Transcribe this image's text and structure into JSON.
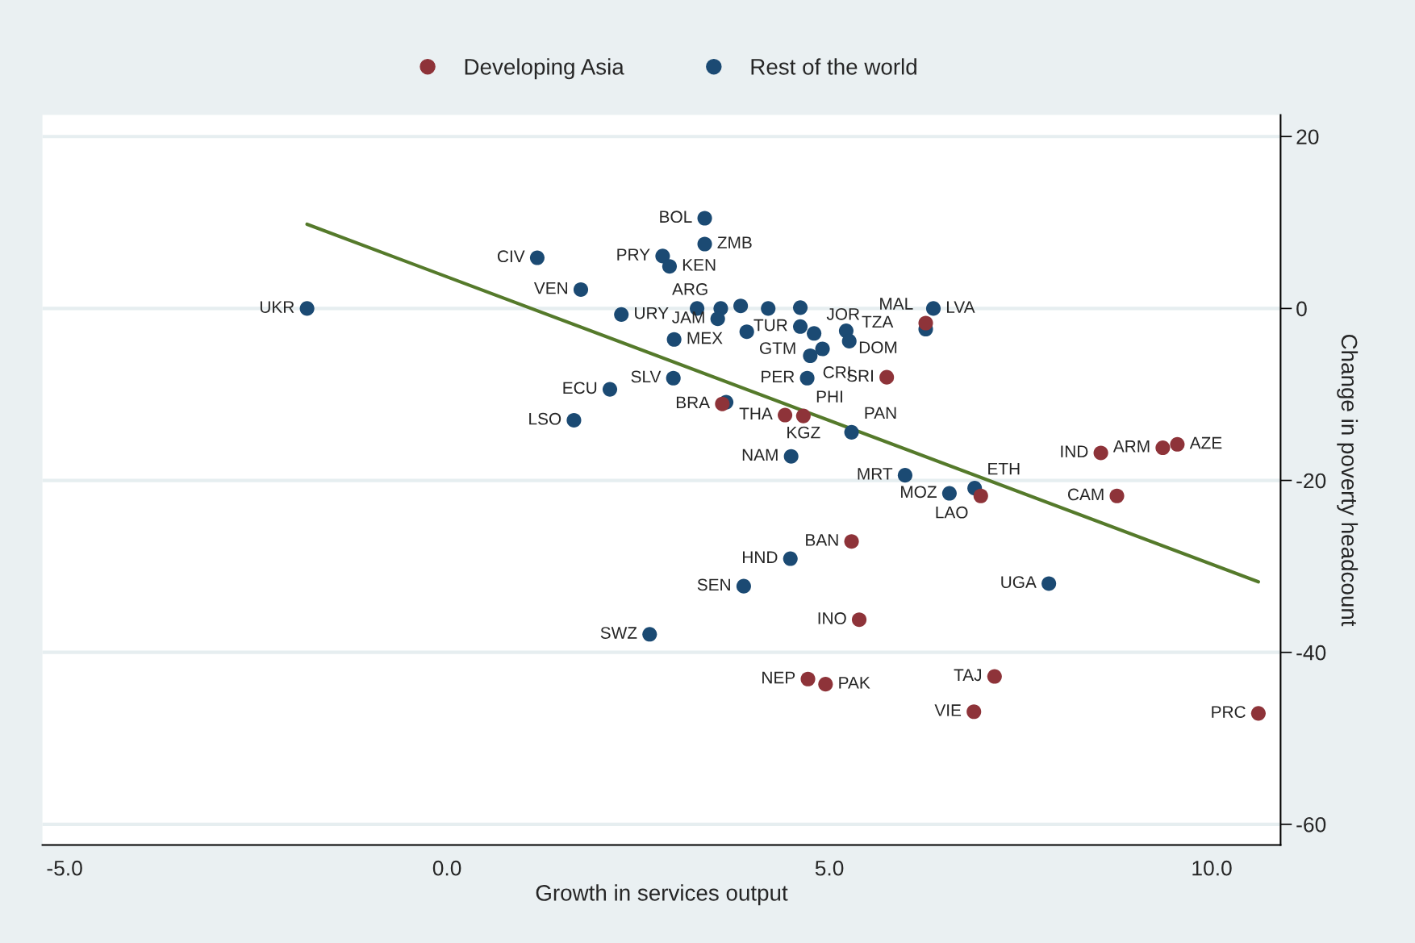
{
  "chart_data": {
    "type": "scatter",
    "xlabel": "Growth in services output",
    "ylabel": "Change in poverty headcount",
    "xlim": [
      -5.29,
      10.9
    ],
    "ylim": [
      -62.4,
      22.5
    ],
    "xticks": [
      {
        "value": -5,
        "label": "-5.0"
      },
      {
        "value": 0,
        "label": "0.0"
      },
      {
        "value": 5,
        "label": "5.0"
      },
      {
        "value": 10,
        "label": "10.0"
      }
    ],
    "yticks": [
      20,
      0,
      -20,
      -40,
      -60
    ],
    "grid": "y",
    "legend": "top",
    "marker": "circle",
    "series": [
      {
        "name": "Developing Asia",
        "color": "#8e3339",
        "x": [
          3.6,
          4.42,
          4.66,
          5.75,
          6.26,
          8.55,
          9.36,
          9.55,
          6.98,
          8.76,
          5.29,
          5.39,
          4.72,
          4.95,
          7.16,
          6.89,
          10.61
        ],
        "values": [
          -11.1,
          -12.4,
          -12.5,
          -8.0,
          -1.7,
          -16.8,
          -16.2,
          -15.8,
          -21.8,
          -21.8,
          -27.1,
          -36.2,
          -43.1,
          -43.7,
          -42.8,
          -46.9,
          -47.1
        ]
      },
      {
        "name": "Rest of the world",
        "color": "#1b4a73",
        "x": [
          -1.83,
          1.18,
          1.75,
          2.28,
          1.66,
          2.13,
          2.96,
          2.97,
          2.82,
          2.91,
          3.37,
          3.37,
          3.27,
          3.58,
          3.54,
          3.92,
          3.84,
          4.2,
          4.62,
          4.62,
          4.8,
          5.22,
          5.26,
          4.91,
          4.75,
          4.71,
          5.29,
          4.5,
          5.99,
          6.9,
          6.57,
          6.36,
          6.26,
          4.49,
          3.88,
          2.65,
          7.87,
          3.65
        ],
        "values": [
          0,
          5.9,
          2.2,
          -0.7,
          -13.0,
          -9.4,
          -8.1,
          -3.6,
          6.1,
          4.9,
          7.5,
          10.5,
          0,
          0,
          -1.2,
          -2.7,
          0.3,
          0,
          0.1,
          -2.1,
          -2.9,
          -2.6,
          -3.8,
          -4.7,
          -5.5,
          -8.1,
          -14.4,
          -17.2,
          -19.4,
          -20.9,
          -21.5,
          0,
          -2.4,
          -29.1,
          -32.3,
          -37.9,
          -32.0,
          -10.9
        ]
      },
      {
        "type": "line",
        "marker": "none",
        "color": "#557a2b",
        "x": [
          -1.83,
          10.61
        ],
        "values": [
          9.8,
          -31.8
        ]
      }
    ],
    "annotations": [
      {
        "text": "UKR",
        "x": -1.83,
        "y": 0
      },
      {
        "text": "CIV",
        "x": 1.18,
        "y": 5.9
      },
      {
        "text": "VEN",
        "x": 1.75,
        "y": 2.2
      },
      {
        "text": "URY",
        "x": 2.28,
        "y": -0.7
      },
      {
        "text": "LSO",
        "x": 1.66,
        "y": -13.0
      },
      {
        "text": "ECU",
        "x": 2.13,
        "y": -9.4
      },
      {
        "text": "SLV",
        "x": 2.96,
        "y": -8.1
      },
      {
        "text": "MEX",
        "x": 2.97,
        "y": -3.6
      },
      {
        "text": "PRY",
        "x": 2.82,
        "y": 6.1
      },
      {
        "text": "KEN",
        "x": 2.91,
        "y": 4.9
      },
      {
        "text": "ZMB",
        "x": 3.37,
        "y": 7.5
      },
      {
        "text": "BOL",
        "x": 3.37,
        "y": 10.5
      },
      {
        "text": "ARG",
        "x": 3.58,
        "y": 0
      },
      {
        "text": "JAM",
        "x": 3.54,
        "y": -1.2
      },
      {
        "text": "GTM",
        "x": 3.92,
        "y": -2.7
      },
      {
        "text": "TUR",
        "x": 4.62,
        "y": -2.1
      },
      {
        "text": "JOR",
        "x": 4.8,
        "y": -2.9
      },
      {
        "text": "DOM",
        "x": 5.22,
        "y": -2.6
      },
      {
        "text": "TZA",
        "x": 5.26,
        "y": -3.8
      },
      {
        "text": "CRI",
        "x": 4.75,
        "y": -5.5
      },
      {
        "text": "PER",
        "x": 4.71,
        "y": -8.1
      },
      {
        "text": "PHI",
        "x": 4.66,
        "y": -12.5
      },
      {
        "text": "BRA",
        "x": 3.6,
        "y": -11.1
      },
      {
        "text": "THA",
        "x": 4.42,
        "y": -12.4
      },
      {
        "text": "KGZ",
        "x": 4.66,
        "y": -12.5
      },
      {
        "text": "PAN",
        "x": 5.29,
        "y": -14.4
      },
      {
        "text": "SRI",
        "x": 5.75,
        "y": -8.0
      },
      {
        "text": "LVA",
        "x": 6.36,
        "y": 0
      },
      {
        "text": "MAL",
        "x": 6.26,
        "y": -1.7
      },
      {
        "text": "NAM",
        "x": 4.5,
        "y": -17.2
      },
      {
        "text": "MRT",
        "x": 5.99,
        "y": -19.4
      },
      {
        "text": "MOZ",
        "x": 6.57,
        "y": -21.5
      },
      {
        "text": "ETH",
        "x": 6.9,
        "y": -20.9
      },
      {
        "text": "LAO",
        "x": 6.98,
        "y": -21.8
      },
      {
        "text": "CAM",
        "x": 8.76,
        "y": -21.8
      },
      {
        "text": "IND",
        "x": 8.55,
        "y": -16.8
      },
      {
        "text": "ARM",
        "x": 9.36,
        "y": -16.2
      },
      {
        "text": "AZE",
        "x": 9.55,
        "y": -15.8
      },
      {
        "text": "UGA",
        "x": 7.87,
        "y": -32.0
      },
      {
        "text": "BAN",
        "x": 5.29,
        "y": -27.1
      },
      {
        "text": "HND",
        "x": 4.49,
        "y": -29.1
      },
      {
        "text": "SEN",
        "x": 3.88,
        "y": -32.3
      },
      {
        "text": "INO",
        "x": 5.39,
        "y": -36.2
      },
      {
        "text": "SWZ",
        "x": 2.65,
        "y": -37.9
      },
      {
        "text": "NEP",
        "x": 4.72,
        "y": -43.1
      },
      {
        "text": "PAK",
        "x": 4.95,
        "y": -43.7
      },
      {
        "text": "TAJ",
        "x": 7.16,
        "y": -42.8
      },
      {
        "text": "VIE",
        "x": 6.89,
        "y": -46.9
      },
      {
        "text": "PRC",
        "x": 10.61,
        "y": -47.1
      }
    ]
  }
}
